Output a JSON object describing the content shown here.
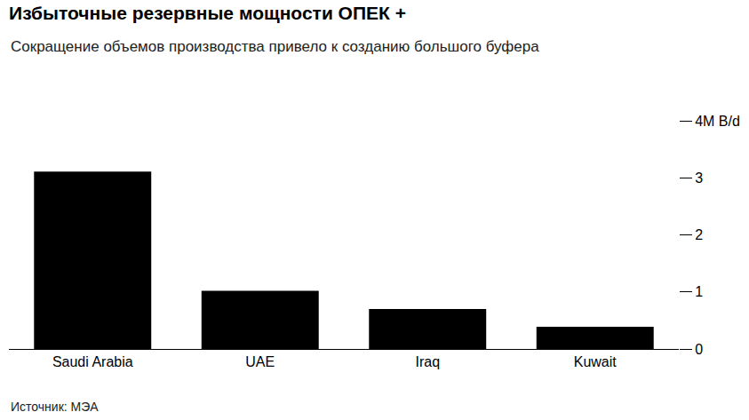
{
  "chart_data": {
    "type": "bar",
    "title": "Избыточные резервные мощности ОПЕК +",
    "subtitle": "Сокращение объемов производства привело к созданию большого буфера",
    "source": "Источник: МЭА",
    "categories": [
      "Saudi Arabia",
      "UAE",
      "Iraq",
      "Kuwait"
    ],
    "values": [
      3.11,
      1.02,
      0.7,
      0.39
    ],
    "color": "#000000",
    "ylim": [
      0,
      4
    ],
    "yticks": [
      0,
      1,
      2,
      3,
      {
        "value": 4,
        "label": "4M B/d"
      }
    ],
    "grid": false
  }
}
